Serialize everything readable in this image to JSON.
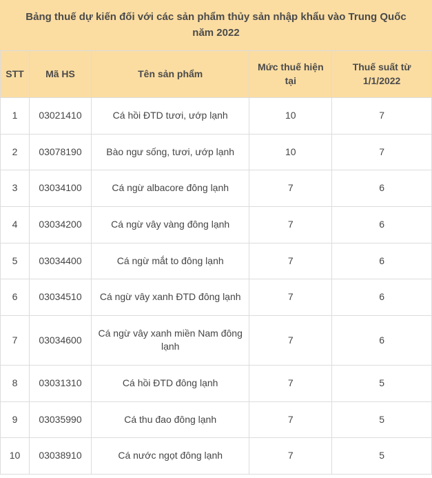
{
  "title": "Bảng thuế dự kiến đối với các sản phẩm thủy sản nhập khẩu vào Trung Quốc năm 2022",
  "table": {
    "columns": {
      "stt": "STT",
      "hs": "Mã HS",
      "name": "Tên sản phẩm",
      "current": "Mức thuế hiện tại",
      "new": "Thuế suất từ 1/1/2022"
    },
    "rows": [
      {
        "stt": "1",
        "hs": "03021410",
        "name": "Cá hồi ĐTD tươi, ướp lạnh",
        "current": "10",
        "new": "7"
      },
      {
        "stt": "2",
        "hs": "03078190",
        "name": "Bào ngư sống, tươi, ướp lạnh",
        "current": "10",
        "new": "7"
      },
      {
        "stt": "3",
        "hs": "03034100",
        "name": "Cá ngừ albacore đông lạnh",
        "current": "7",
        "new": "6"
      },
      {
        "stt": "4",
        "hs": "03034200",
        "name": "Cá ngừ vây vàng đông lạnh",
        "current": "7",
        "new": "6"
      },
      {
        "stt": "5",
        "hs": "03034400",
        "name": "Cá ngừ mắt to đông lạnh",
        "current": "7",
        "new": "6"
      },
      {
        "stt": "6",
        "hs": "03034510",
        "name": "Cá ngừ vây xanh ĐTD đông lạnh",
        "current": "7",
        "new": "6"
      },
      {
        "stt": "7",
        "hs": "03034600",
        "name": "Cá ngừ vây xanh miền Nam đông lạnh",
        "current": "7",
        "new": "6"
      },
      {
        "stt": "8",
        "hs": "03031310",
        "name": "Cá hồi ĐTD đông lạnh",
        "current": "7",
        "new": "5"
      },
      {
        "stt": "9",
        "hs": "03035990",
        "name": "Cá thu đao đông lạnh",
        "current": "7",
        "new": "5"
      },
      {
        "stt": "10",
        "hs": "03038910",
        "name": "Cá nước ngọt đông lạnh",
        "current": "7",
        "new": "5"
      }
    ]
  },
  "colors": {
    "header_bg": "#fbdda2",
    "border": "#dcdcdc",
    "text": "#454545",
    "title_text": "#4a4a4a",
    "background": "#ffffff"
  }
}
